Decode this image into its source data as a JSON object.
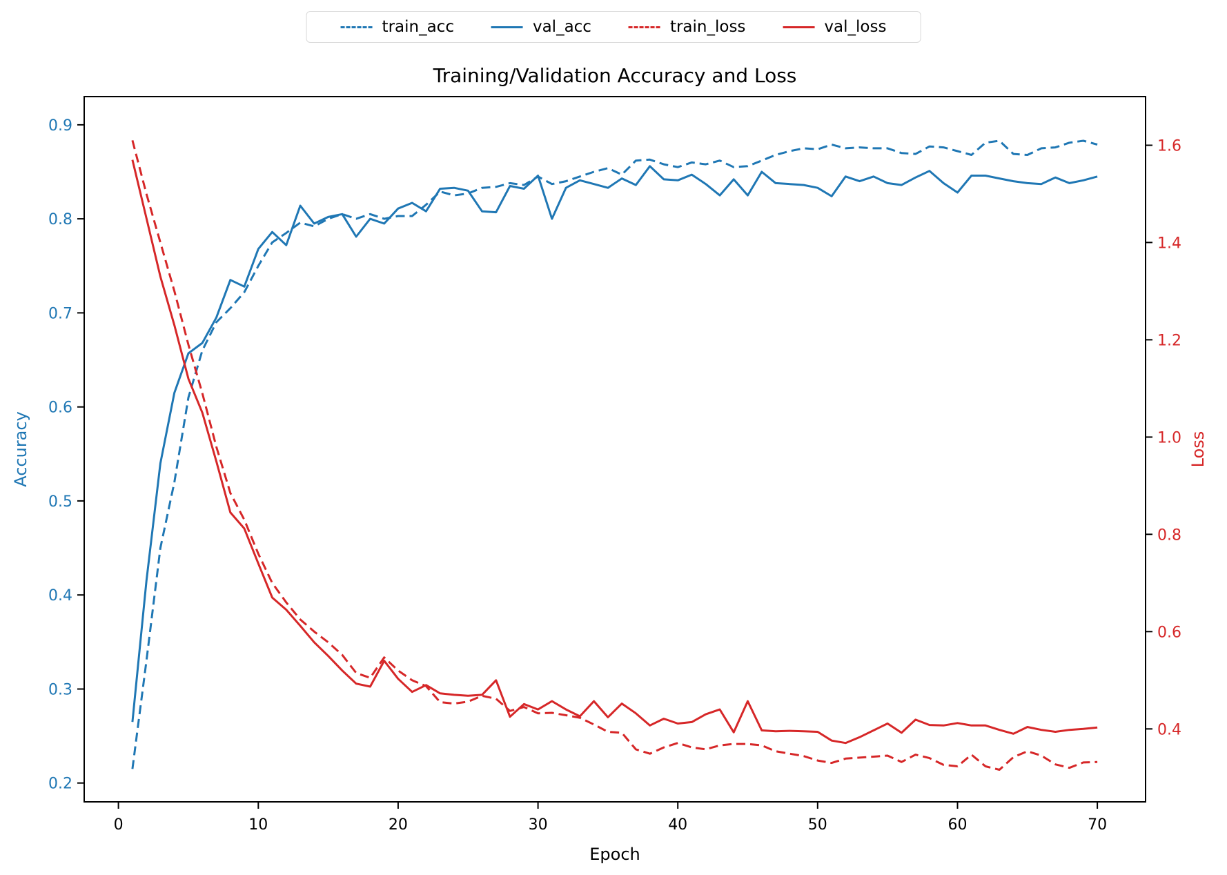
{
  "figure": {
    "title": "Training/Validation Accuracy and Loss",
    "background": "#ffffff"
  },
  "legend": {
    "position": "top-center",
    "items": [
      {
        "label": "train_acc",
        "color": "#1f77b4",
        "style": "dashed"
      },
      {
        "label": "val_acc",
        "color": "#1f77b4",
        "style": "solid"
      },
      {
        "label": "train_loss",
        "color": "#d62728",
        "style": "dashed"
      },
      {
        "label": "val_loss",
        "color": "#d62728",
        "style": "solid"
      }
    ]
  },
  "chart_data": {
    "type": "line",
    "title": "Training/Validation Accuracy and Loss",
    "xlabel": "Epoch",
    "ylabel_left": "Accuracy",
    "ylabel_right": "Loss",
    "grid": false,
    "legend_position": "top-center",
    "axis_colors": {
      "left": "#1f77b4",
      "right": "#d62728",
      "spine": "#000000",
      "x_tick_label": "#000000"
    },
    "x_ticks": [
      0,
      10,
      20,
      30,
      40,
      50,
      60,
      70
    ],
    "acc_ticks": [
      0.2,
      0.3,
      0.4,
      0.5,
      0.6,
      0.7,
      0.8,
      0.9
    ],
    "loss_ticks": [
      0.4,
      0.6,
      0.8,
      1.0,
      1.2,
      1.4,
      1.6
    ],
    "xlim": [
      -2.45,
      73.45
    ],
    "acc_ylim": [
      0.18,
      0.93
    ],
    "loss_ylim": [
      0.25,
      1.7
    ],
    "x": [
      1,
      2,
      3,
      4,
      5,
      6,
      7,
      8,
      9,
      10,
      11,
      12,
      13,
      14,
      15,
      16,
      17,
      18,
      19,
      20,
      21,
      22,
      23,
      24,
      25,
      26,
      27,
      28,
      29,
      30,
      31,
      32,
      33,
      34,
      35,
      36,
      37,
      38,
      39,
      40,
      41,
      42,
      43,
      44,
      45,
      46,
      47,
      48,
      49,
      50,
      51,
      52,
      53,
      54,
      55,
      56,
      57,
      58,
      59,
      60,
      61,
      62,
      63,
      64,
      65,
      66,
      67,
      68,
      69,
      70
    ],
    "series": [
      {
        "name": "train_acc",
        "axis": "accuracy",
        "color": "#1f77b4",
        "style": "dashed",
        "values": [
          0.215,
          0.33,
          0.45,
          0.52,
          0.61,
          0.66,
          0.69,
          0.705,
          0.722,
          0.75,
          0.775,
          0.785,
          0.796,
          0.792,
          0.8,
          0.805,
          0.8,
          0.805,
          0.8,
          0.803,
          0.803,
          0.815,
          0.829,
          0.825,
          0.827,
          0.833,
          0.834,
          0.838,
          0.836,
          0.845,
          0.837,
          0.84,
          0.845,
          0.85,
          0.854,
          0.847,
          0.862,
          0.863,
          0.858,
          0.855,
          0.86,
          0.858,
          0.862,
          0.855,
          0.856,
          0.862,
          0.868,
          0.872,
          0.875,
          0.874,
          0.879,
          0.875,
          0.876,
          0.875,
          0.875,
          0.87,
          0.869,
          0.877,
          0.876,
          0.872,
          0.868,
          0.881,
          0.883,
          0.869,
          0.868,
          0.875,
          0.876,
          0.881,
          0.883,
          0.879
        ]
      },
      {
        "name": "val_acc",
        "axis": "accuracy",
        "color": "#1f77b4",
        "style": "solid",
        "values": [
          0.265,
          0.415,
          0.54,
          0.615,
          0.657,
          0.668,
          0.695,
          0.735,
          0.728,
          0.768,
          0.786,
          0.772,
          0.814,
          0.795,
          0.802,
          0.805,
          0.781,
          0.8,
          0.795,
          0.811,
          0.817,
          0.808,
          0.832,
          0.833,
          0.83,
          0.808,
          0.807,
          0.835,
          0.832,
          0.846,
          0.8,
          0.833,
          0.841,
          0.837,
          0.833,
          0.843,
          0.836,
          0.856,
          0.842,
          0.841,
          0.847,
          0.837,
          0.825,
          0.842,
          0.825,
          0.85,
          0.838,
          0.837,
          0.836,
          0.833,
          0.824,
          0.845,
          0.84,
          0.845,
          0.838,
          0.836,
          0.844,
          0.851,
          0.838,
          0.828,
          0.846,
          0.846,
          0.843,
          0.84,
          0.838,
          0.837,
          0.844,
          0.838,
          0.841,
          0.845
        ]
      },
      {
        "name": "train_loss",
        "axis": "loss",
        "color": "#d62728",
        "style": "dashed",
        "values": [
          1.61,
          1.5,
          1.4,
          1.3,
          1.19,
          1.09,
          0.98,
          0.885,
          0.83,
          0.76,
          0.7,
          0.66,
          0.625,
          0.6,
          0.578,
          0.552,
          0.515,
          0.505,
          0.547,
          0.52,
          0.5,
          0.488,
          0.455,
          0.452,
          0.456,
          0.468,
          0.462,
          0.437,
          0.445,
          0.432,
          0.433,
          0.428,
          0.423,
          0.409,
          0.394,
          0.392,
          0.358,
          0.349,
          0.362,
          0.371,
          0.362,
          0.358,
          0.366,
          0.369,
          0.369,
          0.366,
          0.354,
          0.349,
          0.344,
          0.335,
          0.33,
          0.339,
          0.341,
          0.343,
          0.345,
          0.332,
          0.347,
          0.34,
          0.326,
          0.323,
          0.347,
          0.323,
          0.316,
          0.342,
          0.354,
          0.345,
          0.327,
          0.32,
          0.331,
          0.332
        ]
      },
      {
        "name": "val_loss",
        "axis": "loss",
        "color": "#d62728",
        "style": "solid",
        "values": [
          1.57,
          1.45,
          1.33,
          1.23,
          1.12,
          1.05,
          0.95,
          0.845,
          0.812,
          0.74,
          0.67,
          0.645,
          0.612,
          0.578,
          0.55,
          0.52,
          0.493,
          0.487,
          0.54,
          0.503,
          0.476,
          0.49,
          0.473,
          0.47,
          0.468,
          0.47,
          0.5,
          0.425,
          0.451,
          0.44,
          0.457,
          0.44,
          0.426,
          0.457,
          0.424,
          0.452,
          0.432,
          0.407,
          0.421,
          0.411,
          0.414,
          0.43,
          0.44,
          0.393,
          0.457,
          0.397,
          0.395,
          0.396,
          0.395,
          0.394,
          0.376,
          0.371,
          0.383,
          0.397,
          0.411,
          0.392,
          0.419,
          0.408,
          0.407,
          0.412,
          0.407,
          0.407,
          0.398,
          0.39,
          0.404,
          0.398,
          0.394,
          0.398,
          0.4,
          0.403
        ]
      }
    ]
  }
}
